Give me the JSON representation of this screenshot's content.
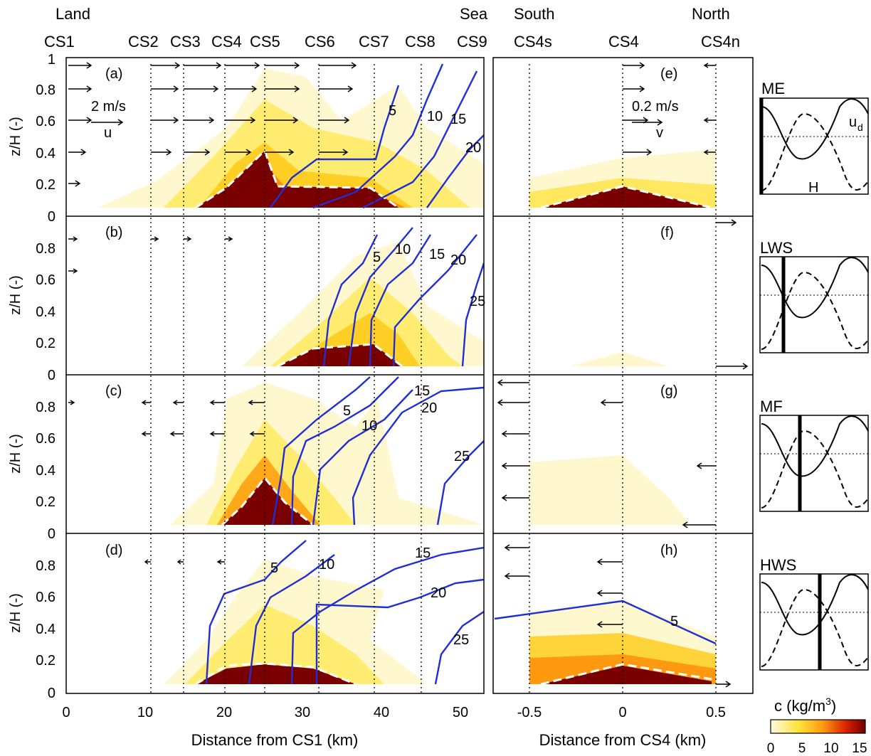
{
  "figure": {
    "left_top_labels": {
      "land": "Land",
      "sea": "Sea",
      "south": "South",
      "north": "North"
    },
    "left_sections": [
      "CS1",
      "CS2",
      "CS3",
      "CS4",
      "CS5",
      "CS6",
      "CS7",
      "CS8",
      "CS9"
    ],
    "right_sections": [
      "CS4s",
      "CS4",
      "CS4n"
    ],
    "ylabel": "z/H (-)",
    "left_xlabel": "Distance from CS1 (km)",
    "right_xlabel": "Distance from CS4 (km)",
    "left_panel_letters": [
      "(a)",
      "(b)",
      "(c)",
      "(d)"
    ],
    "right_panel_letters": [
      "(e)",
      "(f)",
      "(g)",
      "(h)"
    ],
    "scale_u": {
      "value": "2 m/s",
      "symbol": "u"
    },
    "scale_v": {
      "value": "0.2 m/s",
      "symbol": "v"
    },
    "phases": [
      "ME",
      "LWS",
      "MF",
      "HWS"
    ],
    "phase_curve_labels": {
      "ud": "u",
      "ud_sub": "d",
      "H": "H"
    },
    "colorbar": {
      "title": "c (kg/m",
      "title_sup": "3",
      "title_end": ")",
      "ticks": [
        "0",
        "5",
        "10",
        "15"
      ]
    },
    "colors": {
      "contour": "#1f2ed6",
      "dark": "#7a0000",
      "light": "#fff6c8",
      "mid": "#ffd21a"
    }
  },
  "chart_data": [
    {
      "type": "contour",
      "panel": "left",
      "x_unit": "km",
      "xlim": [
        0,
        53
      ],
      "ylim": [
        0,
        1
      ],
      "xticks": [
        0,
        10,
        20,
        30,
        40,
        50
      ],
      "yticks": [
        0,
        0.2,
        0.4,
        0.6,
        0.8,
        1
      ],
      "section_x_km": [
        0,
        10.5,
        14.8,
        20.3,
        25.3,
        32.3,
        39.2,
        45.2,
        53
      ],
      "contours": [
        {
          "panel": "a",
          "levels": [
            5,
            10,
            15,
            20
          ]
        },
        {
          "panel": "b",
          "levels": [
            5,
            10,
            15,
            20,
            25
          ]
        },
        {
          "panel": "c",
          "levels": [
            5,
            10,
            15,
            20,
            25
          ]
        },
        {
          "panel": "d",
          "levels": [
            5,
            10,
            15,
            20,
            25
          ]
        }
      ]
    },
    {
      "type": "contour",
      "panel": "right",
      "x_unit": "km",
      "xlim": [
        -0.75,
        0.75
      ],
      "ylim": [
        0,
        1
      ],
      "xticks": [
        -0.5,
        0,
        0.5
      ],
      "yticks": [
        0,
        0.2,
        0.4,
        0.6,
        0.8,
        1
      ],
      "contours": [
        {
          "panel": "h",
          "levels": [
            5
          ]
        }
      ]
    }
  ]
}
